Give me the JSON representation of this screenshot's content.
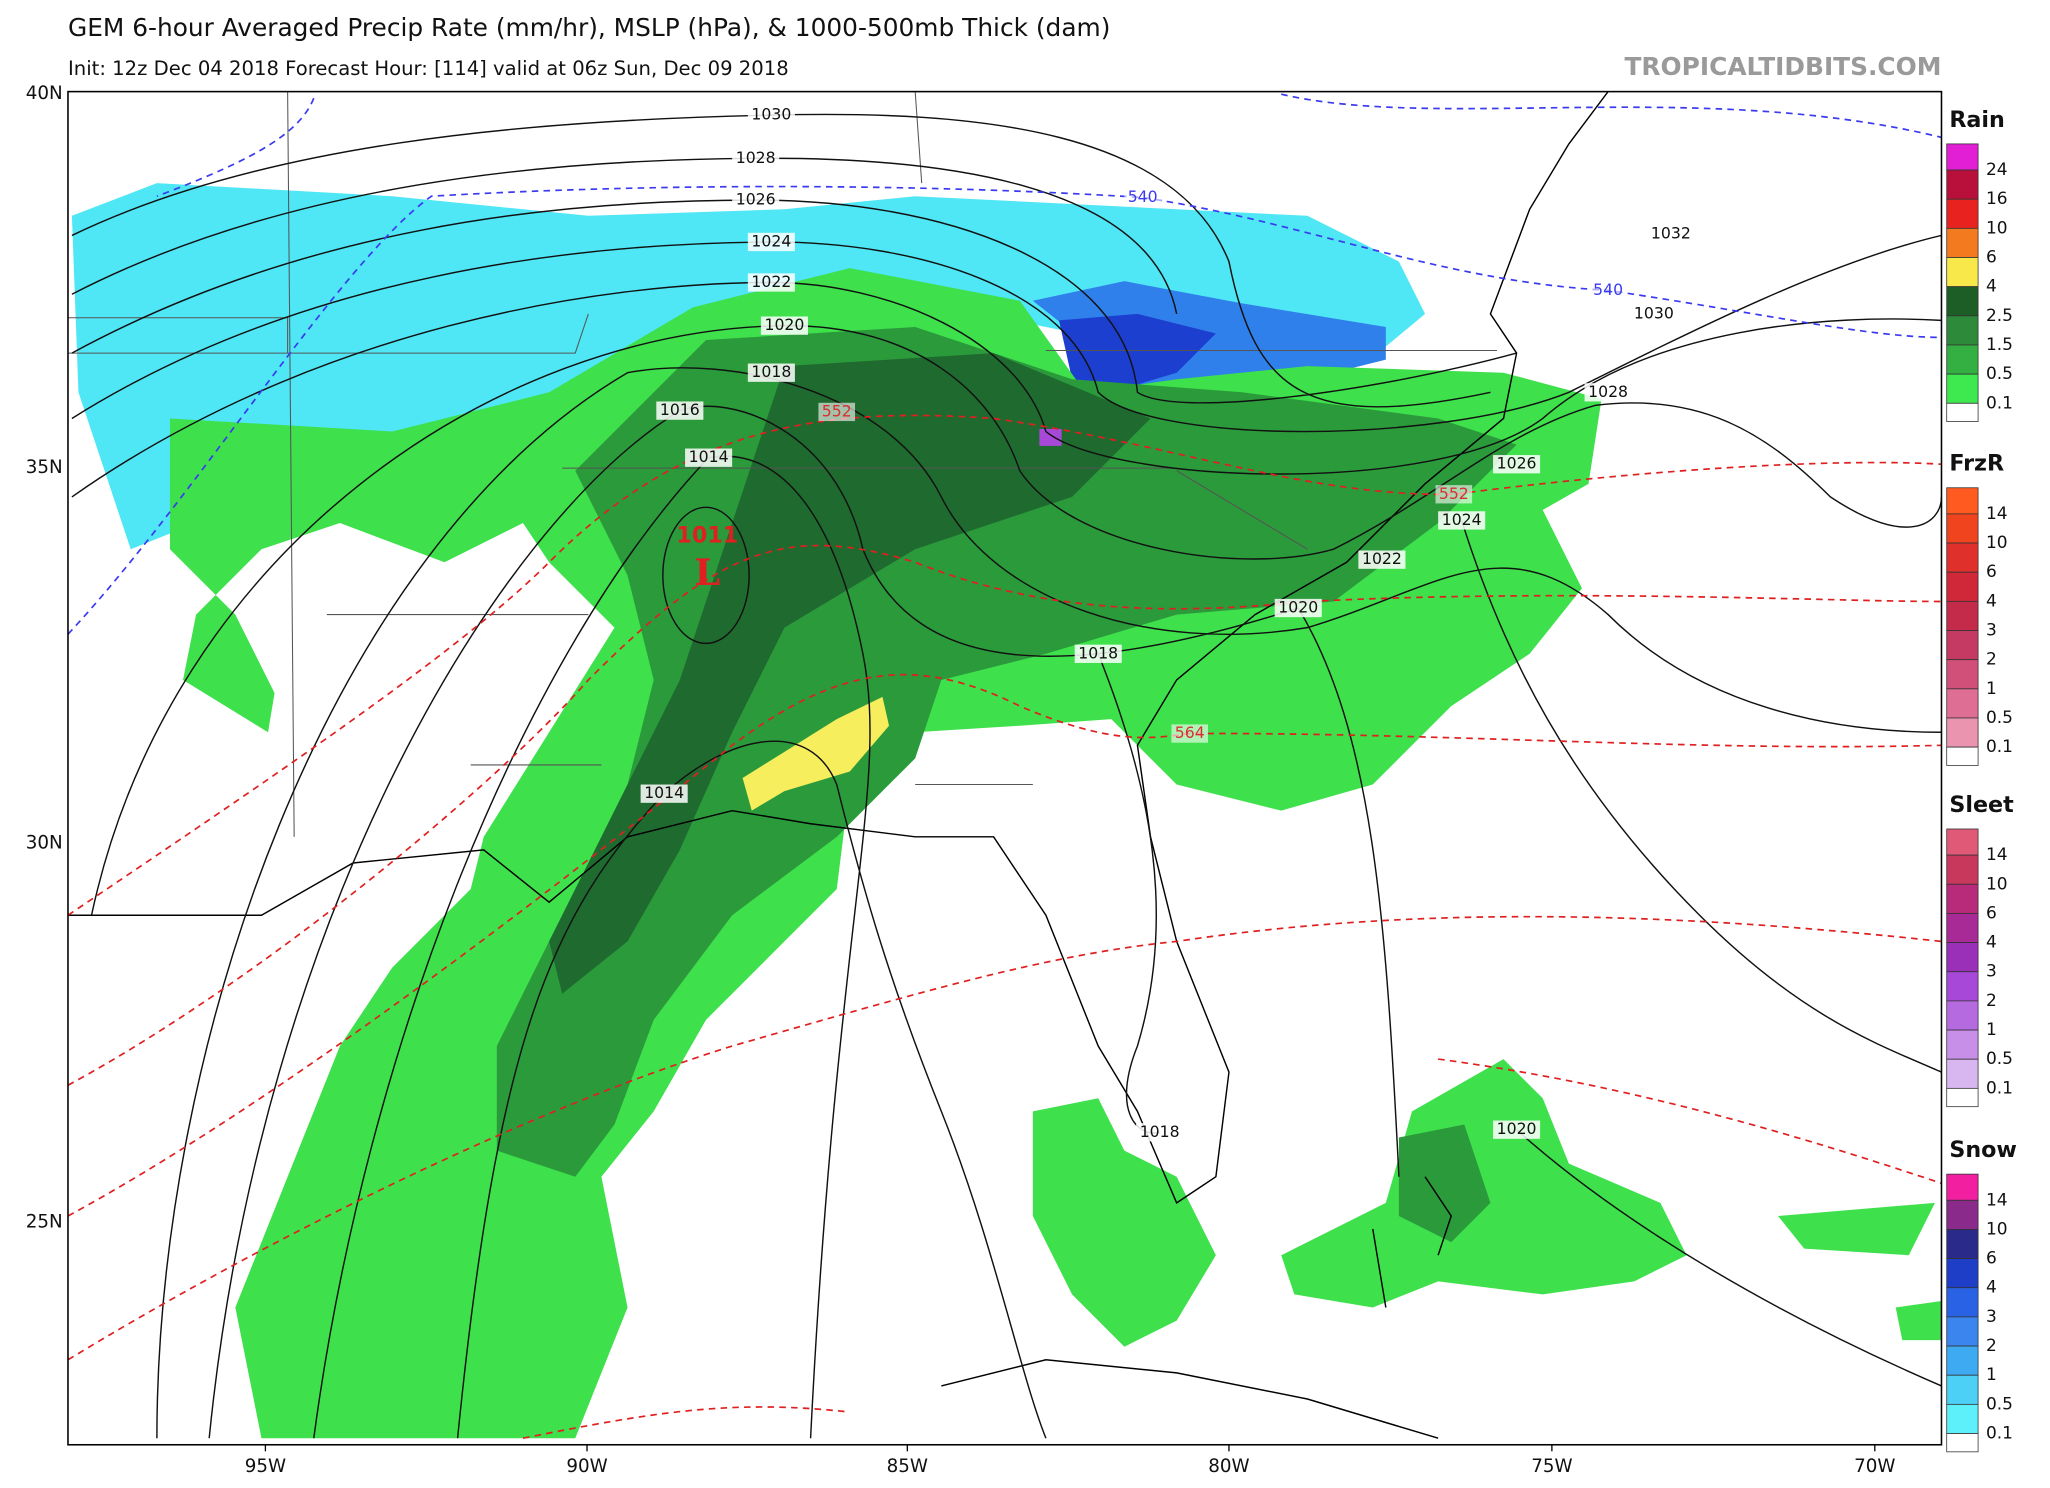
{
  "header": {
    "title": "GEM 6-hour Averaged Precip Rate (mm/hr), MSLP (hPa), & 1000-500mb Thick (dam)",
    "subtitle": "Init: 12z Dec 04 2018   Forecast Hour: [114]   valid at 06z Sun, Dec 09 2018",
    "watermark": "TROPICALTIDBITS.COM"
  },
  "map": {
    "lat_labels": [
      "40N",
      "35N",
      "30N",
      "25N"
    ],
    "lon_labels": [
      "95W",
      "90W",
      "85W",
      "80W",
      "75W",
      "70W"
    ],
    "low": {
      "pressure": 1011,
      "letter": "L"
    },
    "isobar_labels": [
      1030,
      1028,
      1026,
      1024,
      1022,
      1020,
      1018,
      1016,
      1014,
      1014,
      1032,
      1030,
      1028,
      1026,
      1024,
      1022,
      1020,
      1018,
      1018,
      1020
    ],
    "thickness_labels": [
      {
        "value": 540,
        "color": "#3a3af0"
      },
      {
        "value": 540,
        "color": "#3a3af0"
      },
      {
        "value": 552,
        "color": "#d83030"
      },
      {
        "value": 552,
        "color": "#d83030"
      },
      {
        "value": 564,
        "color": "#d83030"
      }
    ]
  },
  "legend": [
    {
      "title": "Rain",
      "levels": [
        24,
        16,
        10,
        6,
        4,
        2.5,
        1.5,
        0.5,
        0.1
      ],
      "colors": [
        "#e21fd4",
        "#b8103a",
        "#e8231f",
        "#f47a1f",
        "#f9e84a",
        "#1d5e26",
        "#2c8a3a",
        "#34b043",
        "#3ee84f",
        "#ffffff"
      ]
    },
    {
      "title": "FrzR",
      "levels": [
        14,
        10,
        6,
        4,
        3,
        2,
        1,
        0.5,
        0.1
      ],
      "colors": [
        "#ff5a1f",
        "#f0441f",
        "#e0302c",
        "#d02838",
        "#c42a4a",
        "#c43a62",
        "#d0507a",
        "#de6e93",
        "#eb94b0",
        "#ffffff"
      ]
    },
    {
      "title": "Sleet",
      "levels": [
        14,
        10,
        6,
        4,
        3,
        2,
        1,
        0.5,
        0.1
      ],
      "colors": [
        "#e05a78",
        "#c8385c",
        "#b82a7a",
        "#a82a96",
        "#9a2fb8",
        "#a848d8",
        "#b66ae0",
        "#c88fe8",
        "#d8b6f0",
        "#ffffff"
      ]
    },
    {
      "title": "Snow",
      "levels": [
        14,
        10,
        6,
        4,
        3,
        2,
        1,
        0.5,
        0.1
      ],
      "colors": [
        "#f21fa0",
        "#8a2a8a",
        "#2a2a8a",
        "#1f3ec8",
        "#2a62e6",
        "#3a86ee",
        "#3eaaf2",
        "#4cd0f5",
        "#5ef0fa",
        "#ffffff"
      ]
    }
  ]
}
